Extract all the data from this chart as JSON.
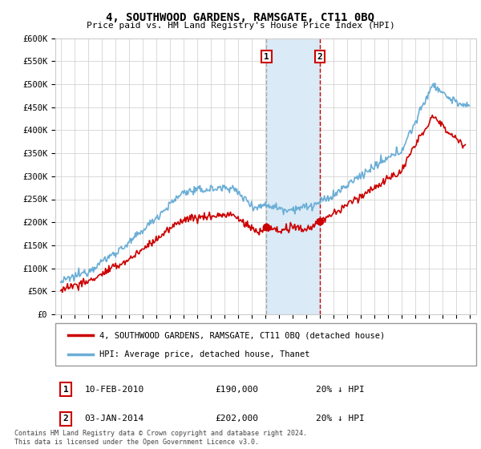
{
  "title": "4, SOUTHWOOD GARDENS, RAMSGATE, CT11 0BQ",
  "subtitle": "Price paid vs. HM Land Registry's House Price Index (HPI)",
  "ylim": [
    0,
    600000
  ],
  "yticks": [
    0,
    50000,
    100000,
    150000,
    200000,
    250000,
    300000,
    350000,
    400000,
    450000,
    500000,
    550000,
    600000
  ],
  "ytick_labels": [
    "£0",
    "£50K",
    "£100K",
    "£150K",
    "£200K",
    "£250K",
    "£300K",
    "£350K",
    "£400K",
    "£450K",
    "£500K",
    "£550K",
    "£600K"
  ],
  "xlim_start": 1994.6,
  "xlim_end": 2025.5,
  "xtick_years": [
    1995,
    1996,
    1997,
    1998,
    1999,
    2000,
    2001,
    2002,
    2003,
    2004,
    2005,
    2006,
    2007,
    2008,
    2009,
    2010,
    2011,
    2012,
    2013,
    2014,
    2015,
    2016,
    2017,
    2018,
    2019,
    2020,
    2021,
    2022,
    2023,
    2024,
    2025
  ],
  "sale1_x": 2010.107,
  "sale1_y": 190000,
  "sale2_x": 2014.008,
  "sale2_y": 202000,
  "shade_x1": 2010.107,
  "shade_x2": 2014.008,
  "legend_line1": "4, SOUTHWOOD GARDENS, RAMSGATE, CT11 0BQ (detached house)",
  "legend_line2": "HPI: Average price, detached house, Thanet",
  "annotation1_label": "1",
  "annotation1_date": "10-FEB-2010",
  "annotation1_price": "£190,000",
  "annotation1_change": "20% ↓ HPI",
  "annotation2_label": "2",
  "annotation2_date": "03-JAN-2014",
  "annotation2_price": "£202,000",
  "annotation2_change": "20% ↓ HPI",
  "footer": "Contains HM Land Registry data © Crown copyright and database right 2024.\nThis data is licensed under the Open Government Licence v3.0.",
  "hpi_color": "#6baed6",
  "price_color": "#cc0000",
  "shade_color": "#daeaf7",
  "marker_color": "#cc0000",
  "bg_color": "#ffffff",
  "grid_color": "#cccccc",
  "vline1_color": "#aaaaaa",
  "vline2_color": "#cc0000"
}
